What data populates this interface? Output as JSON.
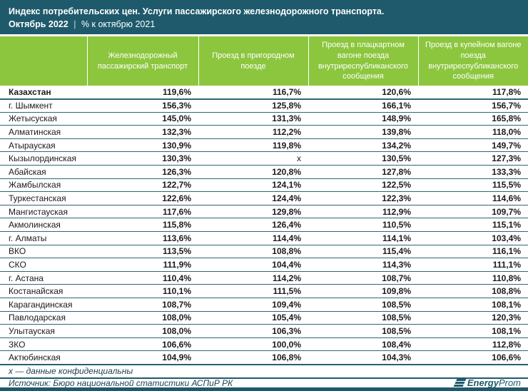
{
  "header": {
    "title": "Индекс потребительских цен. Услуги пассажирского железнодорожного транспорта.",
    "subtitle_period": "Октябрь 2022",
    "subtitle_separator": "|",
    "subtitle_rest": "% к октябрю 2021"
  },
  "table": {
    "region_column_label": "",
    "columns": [
      "Железнодорожный пассажирский транспорт",
      "Проезд в пригородном поезде",
      "Проезд в плацкартном вагоне поезда внутриреспубликанского сообщения",
      "Проезд в купейном вагоне поезда внутриреспубликанского сообщения"
    ],
    "rows": [
      {
        "region": "Казахстан",
        "bold": true,
        "values": [
          "119,6%",
          "116,7%",
          "120,6%",
          "117,8%"
        ]
      },
      {
        "region": "г. Шымкент",
        "bold": false,
        "values": [
          "156,3%",
          "125,8%",
          "166,1%",
          "156,7%"
        ]
      },
      {
        "region": "Жетысуская",
        "bold": false,
        "values": [
          "145,0%",
          "131,3%",
          "148,9%",
          "165,8%"
        ]
      },
      {
        "region": "Алматинская",
        "bold": false,
        "values": [
          "132,3%",
          "112,2%",
          "139,8%",
          "118,0%"
        ]
      },
      {
        "region": "Атырауская",
        "bold": false,
        "values": [
          "130,9%",
          "119,8%",
          "134,2%",
          "149,7%"
        ]
      },
      {
        "region": "Кызылординская",
        "bold": false,
        "values": [
          "130,3%",
          "х",
          "130,5%",
          "127,3%"
        ]
      },
      {
        "region": "Абайская",
        "bold": false,
        "values": [
          "126,3%",
          "120,8%",
          "127,8%",
          "133,3%"
        ]
      },
      {
        "region": "Жамбылская",
        "bold": false,
        "values": [
          "122,7%",
          "124,1%",
          "122,5%",
          "115,5%"
        ]
      },
      {
        "region": "Туркестанская",
        "bold": false,
        "values": [
          "122,6%",
          "124,4%",
          "122,3%",
          "114,6%"
        ]
      },
      {
        "region": "Мангистауская",
        "bold": false,
        "values": [
          "117,6%",
          "129,8%",
          "112,9%",
          "109,7%"
        ]
      },
      {
        "region": "Акмолинская",
        "bold": false,
        "values": [
          "115,8%",
          "126,4%",
          "110,5%",
          "115,1%"
        ]
      },
      {
        "region": "г. Алматы",
        "bold": false,
        "values": [
          "113,6%",
          "114,4%",
          "114,1%",
          "103,4%"
        ]
      },
      {
        "region": "ВКО",
        "bold": false,
        "values": [
          "113,5%",
          "108,8%",
          "115,4%",
          "116,1%"
        ]
      },
      {
        "region": "СКО",
        "bold": false,
        "values": [
          "111,9%",
          "104,4%",
          "114,3%",
          "111,1%"
        ]
      },
      {
        "region": "г. Астана",
        "bold": false,
        "values": [
          "110,4%",
          "114,2%",
          "108,7%",
          "110,8%"
        ]
      },
      {
        "region": "Костанайская",
        "bold": false,
        "values": [
          "110,1%",
          "111,5%",
          "109,8%",
          "108,8%"
        ]
      },
      {
        "region": "Карагандинская",
        "bold": false,
        "values": [
          "108,7%",
          "109,4%",
          "108,5%",
          "108,1%"
        ]
      },
      {
        "region": "Павлодарская",
        "bold": false,
        "values": [
          "108,0%",
          "105,4%",
          "108,5%",
          "120,3%"
        ]
      },
      {
        "region": "Улытауская",
        "bold": false,
        "values": [
          "108,0%",
          "106,3%",
          "108,5%",
          "108,1%"
        ]
      },
      {
        "region": "ЗКО",
        "bold": false,
        "values": [
          "106,6%",
          "100,0%",
          "108,4%",
          "112,8%"
        ]
      },
      {
        "region": "Актюбинская",
        "bold": false,
        "values": [
          "104,9%",
          "106,8%",
          "104,3%",
          "106,6%"
        ]
      }
    ],
    "na_value": "х"
  },
  "footnote": "х — данные конфиденциальны",
  "source": "Источник: Бюро национальной статистики АСПиР РК",
  "logo": {
    "bold_part": "Energy",
    "light_part": "Prom"
  },
  "colors": {
    "teal": "#1E5A6B",
    "green": "#8CC63E",
    "rowline": "#2F6579",
    "text": "#1A1A1A",
    "foot": "#1D3D4D"
  }
}
